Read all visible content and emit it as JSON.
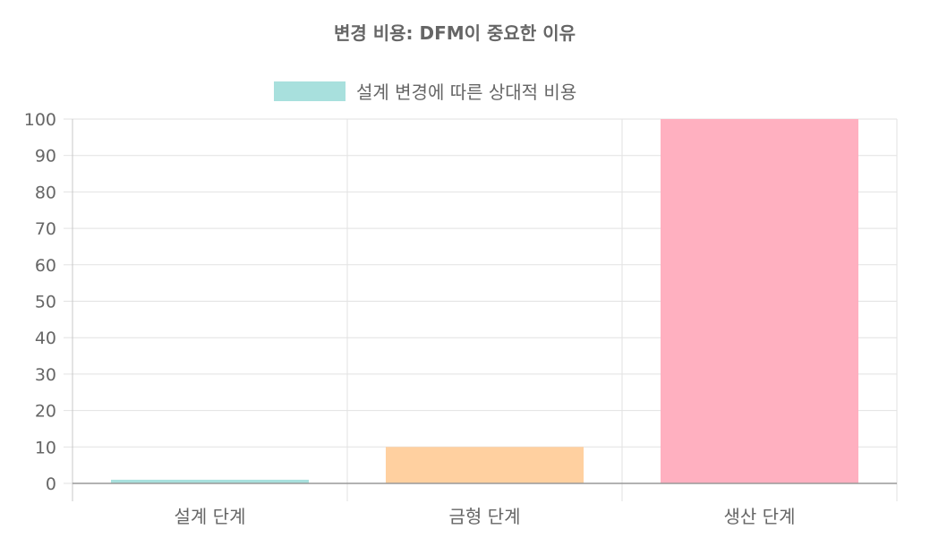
{
  "chart_data": {
    "type": "bar",
    "title": "변경 비용: DFM이 중요한 이유",
    "categories": [
      "설계 단계",
      "금형 단계",
      "생산 단계"
    ],
    "series": [
      {
        "name": "설계 변경에 따른 상대적 비용",
        "values": [
          1,
          10,
          100
        ],
        "colors": [
          "#a8e0dd",
          "#ffd0a0",
          "#ffb0c0"
        ],
        "legend_color": "#a8e0dd"
      }
    ],
    "ylim": [
      0,
      100
    ],
    "yticks": [
      0,
      10,
      20,
      30,
      40,
      50,
      60,
      70,
      80,
      90,
      100
    ],
    "grid": true,
    "legend_position": "top"
  }
}
